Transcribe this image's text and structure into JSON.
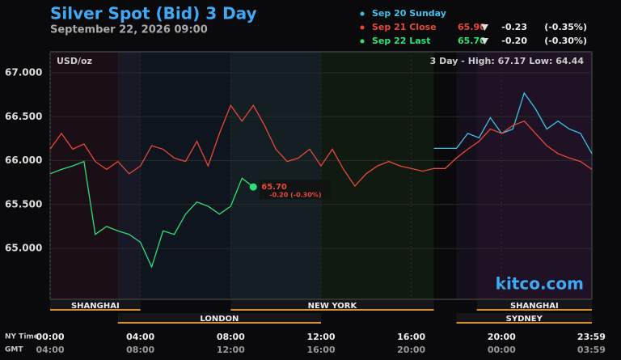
{
  "chart_data": {
    "type": "line",
    "title": "Silver Spot (Bid) 3 Day",
    "subtitle": "September 22, 2026 09:00",
    "unit_label": "USD/oz",
    "range_label": "3 Day - High: 67.17  Low: 64.44",
    "watermark": "kitco.com",
    "x_axis_labels": [
      "NY Time",
      "GMT"
    ],
    "x": [
      0,
      0.5,
      1,
      1.5,
      2,
      2.5,
      3,
      3.5,
      4,
      4.5,
      5,
      5.5,
      6,
      6.5,
      7,
      7.5,
      8,
      8.5,
      9,
      9.5,
      10,
      10.5,
      11,
      11.5,
      12,
      12.5,
      13,
      13.5,
      14,
      14.5,
      15,
      15.5,
      16,
      16.5,
      17,
      17.5,
      18,
      18.5,
      19,
      19.5,
      20,
      20.5,
      21,
      21.5,
      22,
      22.5,
      23,
      23.5,
      24
    ],
    "xlim": [
      0,
      24
    ],
    "xticks": [
      {
        "value": 0,
        "label": "00:00"
      },
      {
        "value": 4,
        "label": "04:00"
      },
      {
        "value": 8,
        "label": "08:00"
      },
      {
        "value": 12,
        "label": "12:00"
      },
      {
        "value": 16,
        "label": "16:00"
      },
      {
        "value": 20,
        "label": "20:00"
      },
      {
        "value": 23.98,
        "label": "23:59"
      }
    ],
    "xticks_gmt": [
      {
        "value": 0,
        "label": "04:00"
      },
      {
        "value": 4,
        "label": "08:00"
      },
      {
        "value": 8,
        "label": "12:00"
      },
      {
        "value": 12,
        "label": "16:00"
      },
      {
        "value": 16,
        "label": "20:00"
      },
      {
        "value": 20,
        "label": "00:00"
      },
      {
        "value": 23.98,
        "label": "03:59"
      }
    ],
    "ylim": [
      64.42,
      67.24
    ],
    "yticks": [
      {
        "value": 65,
        "label": "65.000"
      },
      {
        "value": 65.5,
        "label": "65.500"
      },
      {
        "value": 66,
        "label": "66.000"
      },
      {
        "value": 66.5,
        "label": "66.500"
      },
      {
        "value": 67,
        "label": "67.000"
      }
    ],
    "grid": true,
    "series": [
      {
        "name": "Sep 20 Sunday",
        "color": "#3cc3e8",
        "values": [
          null,
          null,
          null,
          null,
          null,
          null,
          null,
          null,
          null,
          null,
          null,
          null,
          null,
          null,
          null,
          null,
          null,
          null,
          null,
          null,
          null,
          null,
          null,
          null,
          null,
          null,
          null,
          null,
          null,
          null,
          null,
          null,
          null,
          null,
          66.14,
          66.14,
          66.14,
          66.31,
          66.26,
          66.49,
          66.31,
          66.36,
          66.77,
          66.59,
          66.36,
          66.45,
          66.36,
          66.31,
          66.08
        ]
      },
      {
        "name": "Sep 21 Close",
        "color": "#e8483a",
        "price": "65.90",
        "change": "-0.23",
        "change_pct": "(-0.35%)",
        "values": [
          66.13,
          66.31,
          66.13,
          66.19,
          65.99,
          65.9,
          65.99,
          65.85,
          65.94,
          66.17,
          66.13,
          66.03,
          65.99,
          66.22,
          65.94,
          66.31,
          66.63,
          66.45,
          66.63,
          66.4,
          66.13,
          65.99,
          66.03,
          66.13,
          65.94,
          66.13,
          65.9,
          65.71,
          65.85,
          65.94,
          65.99,
          65.94,
          65.91,
          65.88,
          65.91,
          65.91,
          66.03,
          66.13,
          66.22,
          66.36,
          66.31,
          66.4,
          66.45,
          66.31,
          66.17,
          66.08,
          66.03,
          65.99,
          65.9
        ]
      },
      {
        "name": "Sep 22 Last",
        "color": "#2fe07a",
        "price": "65.70",
        "change": "-0.20",
        "change_pct": "(-0.30%)",
        "values": [
          65.85,
          65.9,
          65.94,
          65.99,
          65.16,
          65.25,
          65.2,
          65.16,
          65.07,
          64.79,
          65.2,
          65.16,
          65.39,
          65.53,
          65.48,
          65.39,
          65.48,
          65.8,
          65.7,
          null,
          null,
          null,
          null,
          null,
          null,
          null,
          null,
          null,
          null,
          null,
          null,
          null,
          null,
          null,
          null,
          null,
          null,
          null,
          null,
          null,
          null,
          null,
          null,
          null,
          null,
          null,
          null,
          null,
          null
        ]
      }
    ],
    "annotation": {
      "price": "65.70",
      "change": "-0.20 (-0.30%)"
    },
    "sessions": [
      [
        {
          "name": "SHANGHAI",
          "start": 0,
          "end": 4,
          "color": "#3a1a2c"
        },
        {
          "name": "NEW YORK",
          "start": 8,
          "end": 17,
          "color": "#1e3a1e"
        },
        {
          "name": "SHANGHAI",
          "start": 18.9,
          "end": 24,
          "color": "#3a1a3a"
        }
      ],
      [
        {
          "name": "LONDON",
          "start": 3,
          "end": 12,
          "color": "#1a2a44"
        },
        {
          "name": "SYDNEY",
          "start": 18,
          "end": 24,
          "color": "#2a1a3a"
        }
      ]
    ]
  }
}
